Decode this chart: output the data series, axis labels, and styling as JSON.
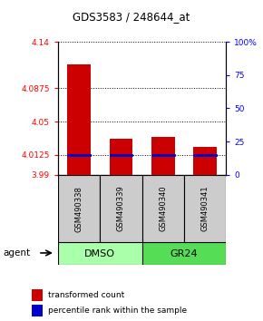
{
  "title": "GDS3583 / 248644_at",
  "samples": [
    "GSM490338",
    "GSM490339",
    "GSM490340",
    "GSM490341"
  ],
  "red_values": [
    4.115,
    4.031,
    4.033,
    4.022
  ],
  "blue_values": [
    4.0125,
    4.0125,
    4.0125,
    4.0125
  ],
  "y_min": 3.99,
  "y_max": 4.14,
  "y_ticks_left": [
    3.99,
    4.0125,
    4.05,
    4.0875,
    4.14
  ],
  "y_ticks_left_labels": [
    "3.99",
    "4.0125",
    "4.05",
    "4.0875",
    "4.14"
  ],
  "y_ticks_right": [
    0,
    25,
    50,
    75,
    100
  ],
  "y_ticks_right_labels": [
    "0",
    "25",
    "50",
    "75",
    "100%"
  ],
  "groups": [
    {
      "label": "DMSO",
      "samples": [
        0,
        1
      ],
      "color": "#aaffaa"
    },
    {
      "label": "GR24",
      "samples": [
        2,
        3
      ],
      "color": "#55dd55"
    }
  ],
  "bar_color": "#cc0000",
  "blue_color": "#0000cc",
  "sample_box_color": "#cccccc",
  "legend_red": "transformed count",
  "legend_blue": "percentile rank within the sample",
  "agent_label": "agent",
  "bar_width": 0.55
}
